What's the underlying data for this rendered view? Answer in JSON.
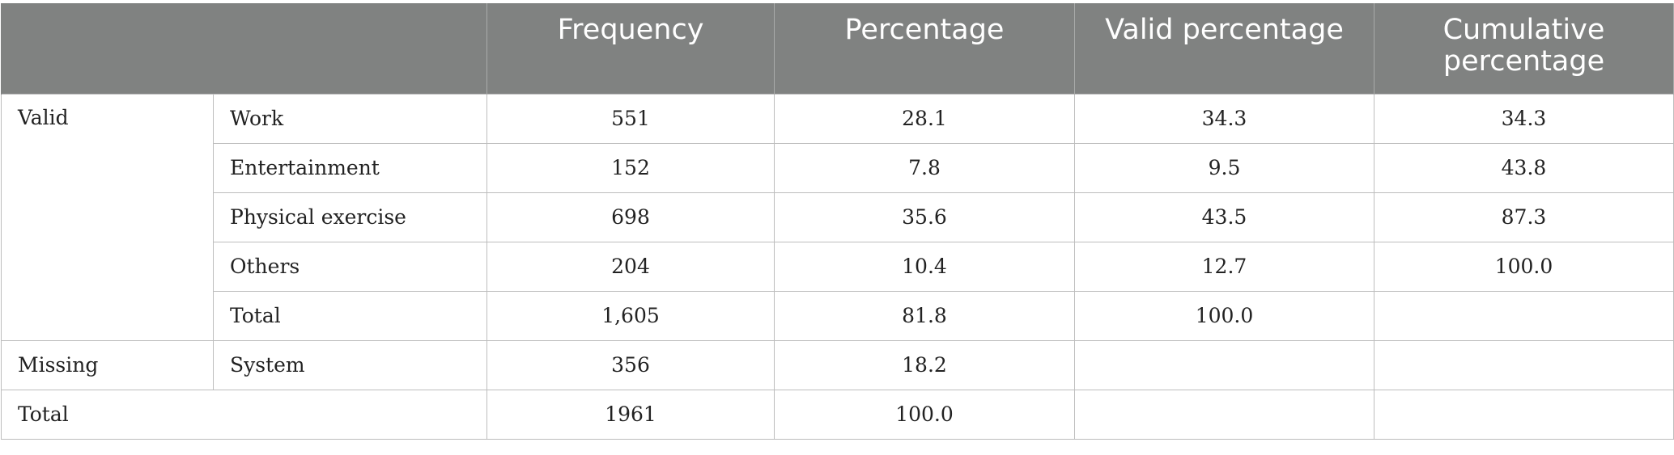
{
  "table": {
    "headers": [
      "",
      "",
      "Frequency",
      "Percentage",
      "Valid percentage",
      "Cumulative percentage"
    ],
    "valid_group": {
      "label": "Valid",
      "rows": [
        {
          "category": "Work",
          "frequency": "551",
          "percentage": "28.1",
          "valid_percentage": "34.3",
          "cumulative_percentage": "34.3"
        },
        {
          "category": "Entertainment",
          "frequency": "152",
          "percentage": "7.8",
          "valid_percentage": "9.5",
          "cumulative_percentage": "43.8"
        },
        {
          "category": "Physical exercise",
          "frequency": "698",
          "percentage": "35.6",
          "valid_percentage": "43.5",
          "cumulative_percentage": "87.3"
        },
        {
          "category": "Others",
          "frequency": "204",
          "percentage": "10.4",
          "valid_percentage": "12.7",
          "cumulative_percentage": "100.0"
        },
        {
          "category": "Total",
          "frequency": "1,605",
          "percentage": "81.8",
          "valid_percentage": "100.0",
          "cumulative_percentage": ""
        }
      ]
    },
    "missing_group": {
      "label": "Missing",
      "rows": [
        {
          "category": "System",
          "frequency": "356",
          "percentage": "18.2",
          "valid_percentage": "",
          "cumulative_percentage": ""
        }
      ]
    },
    "grand_total": {
      "label": "Total",
      "frequency": "1961",
      "percentage": "100.0",
      "valid_percentage": "",
      "cumulative_percentage": ""
    }
  }
}
